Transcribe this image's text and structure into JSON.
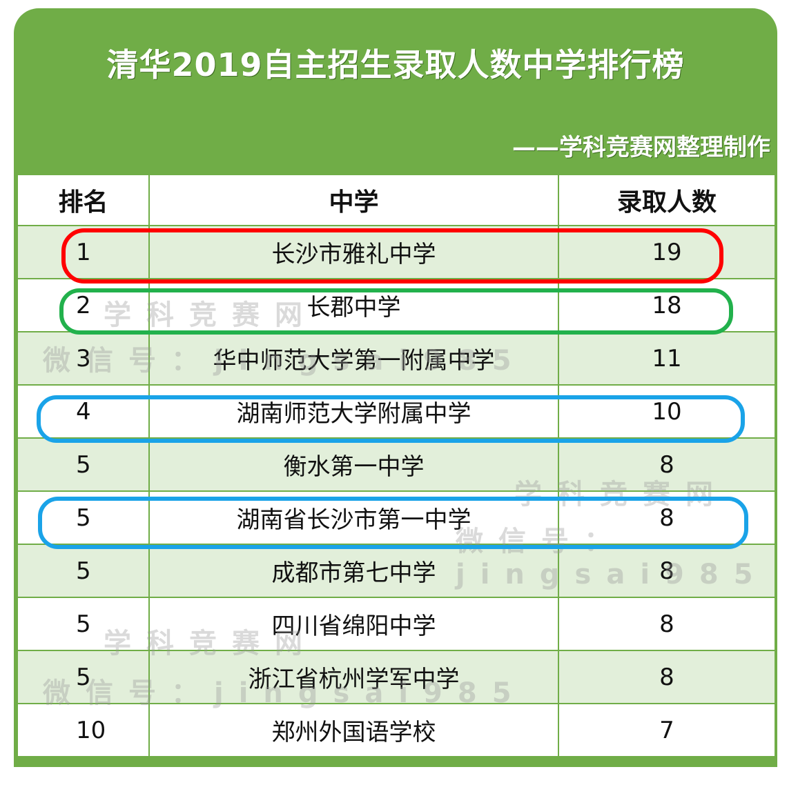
{
  "title": "清华2019自主招生录取人数中学排行榜",
  "subtitle": "——学科竞赛网整理制作",
  "table": {
    "headers": [
      "排名",
      "中学",
      "录取人数"
    ],
    "rows": [
      {
        "rank": "1",
        "school": "长沙市雅礼中学",
        "count": "19"
      },
      {
        "rank": "2",
        "school": "长郡中学",
        "count": "18"
      },
      {
        "rank": "3",
        "school": "华中师范大学第一附属中学",
        "count": "11"
      },
      {
        "rank": "4",
        "school": "湖南师范大学附属中学",
        "count": "10"
      },
      {
        "rank": "5",
        "school": "衡水第一中学",
        "count": "8"
      },
      {
        "rank": "5",
        "school": "湖南省长沙市第一中学",
        "count": "8"
      },
      {
        "rank": "5",
        "school": "成都市第七中学",
        "count": "8"
      },
      {
        "rank": "5",
        "school": "四川省绵阳中学",
        "count": "8"
      },
      {
        "rank": "5",
        "school": "浙江省杭州学军中学",
        "count": "8"
      },
      {
        "rank": "10",
        "school": "郑州外国语学校",
        "count": "7"
      }
    ]
  },
  "watermark": {
    "site": "学科竞赛网",
    "wechat": "微信号：jingsai985"
  },
  "highlights": {
    "rank1": "#ff0000",
    "rank2": "#22b14c",
    "rank4": "#1aa3e8",
    "rank5b": "#1aa3e8"
  },
  "colors": {
    "green": "#70ad47",
    "row_tint": "#e2efda"
  }
}
